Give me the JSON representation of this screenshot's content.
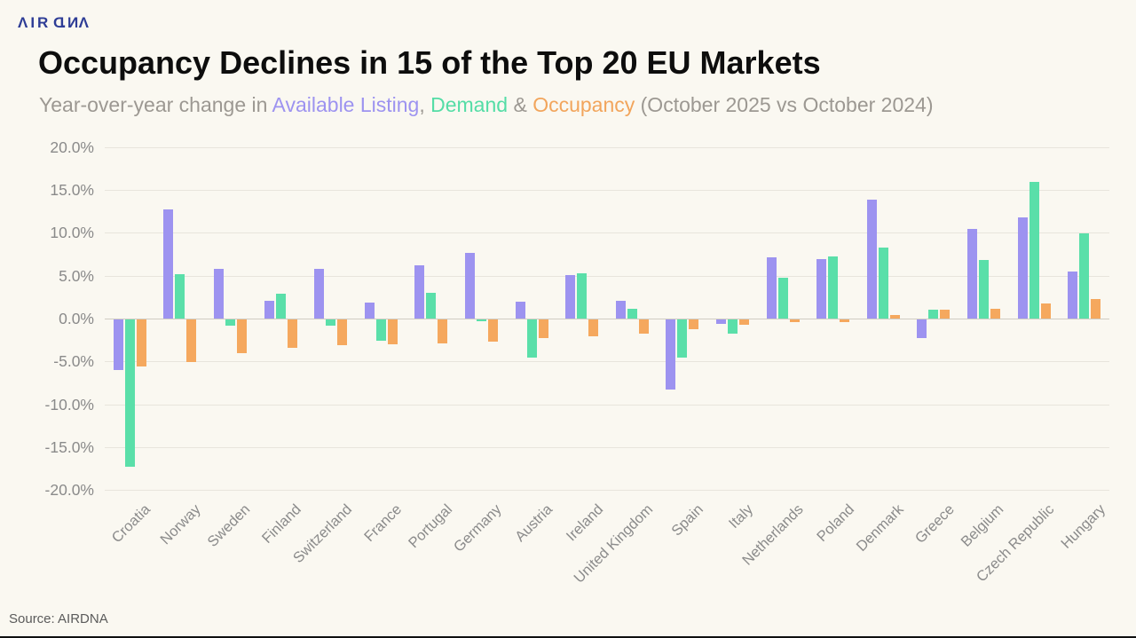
{
  "header": {
    "logo": {
      "p1": "ΛIR",
      "d": "D",
      "dot": ".",
      "n": "N",
      "p2": "Λ"
    }
  },
  "subtitle": {
    "prefix": "Year-over-year change in ",
    "listing": "Available Listing",
    "comma": ", ",
    "demand": "Demand",
    "amp": " & ",
    "occupancy": "Occupancy",
    "suffix": " (October 2025 vs October 2024)"
  },
  "footer": {
    "source": "Source: AIRDNA"
  },
  "colors": {
    "background": "#faf8f1",
    "listing": "#9d93f0",
    "demand": "#5adfa9",
    "occupancy": "#f5a85e",
    "logo_navy": "#2e3d96"
  },
  "chart_data": {
    "type": "bar",
    "title": "Occupancy Declines in 15 of the Top 20 EU Markets",
    "subtitle": "Year-over-year change in Available Listing, Demand & Occupancy (October 2025 vs October 2024)",
    "categories": [
      "Croatia",
      "Norway",
      "Sweden",
      "Finland",
      "Switzerland",
      "France",
      "Portugal",
      "Germany",
      "Austria",
      "Ireland",
      "United Kingdom",
      "Spain",
      "Italy",
      "Netherlands",
      "Poland",
      "Denmark",
      "Greece",
      "Belgium",
      "Czech Republic",
      "Hungary"
    ],
    "series": [
      {
        "name": "Available Listing",
        "color": "#9d93f0",
        "values": [
          -5.9,
          12.7,
          5.8,
          2.1,
          5.8,
          1.9,
          6.2,
          7.7,
          2.0,
          5.1,
          2.1,
          -8.2,
          -0.5,
          7.1,
          6.9,
          13.9,
          -2.2,
          10.5,
          11.8,
          5.5
        ]
      },
      {
        "name": "Demand",
        "color": "#5adfa9",
        "values": [
          -17.2,
          5.2,
          -0.7,
          2.9,
          -0.7,
          -2.5,
          3.0,
          -0.2,
          -4.5,
          5.3,
          1.1,
          -4.5,
          -1.7,
          4.8,
          7.3,
          8.3,
          1.0,
          6.8,
          16.0,
          9.9
        ]
      },
      {
        "name": "Occupancy",
        "color": "#f5a85e",
        "values": [
          -5.5,
          -5.0,
          -3.9,
          -3.3,
          -3.0,
          -2.9,
          -2.8,
          -2.6,
          -2.2,
          -2.0,
          -1.7,
          -1.1,
          -0.6,
          -0.3,
          -0.3,
          0.4,
          1.0,
          1.1,
          1.8,
          2.3
        ]
      }
    ],
    "ylim": [
      -20,
      20
    ],
    "ytick_values": [
      20,
      15,
      10,
      5,
      0,
      -5,
      -10,
      -15,
      -20
    ],
    "ytick_labels": [
      "20.0%",
      "15.0%",
      "10.0%",
      "5.0%",
      "0.0%",
      "-5.0%",
      "-10.0%",
      "-15.0%",
      "-20.0%"
    ],
    "grid": true,
    "legend_position": "in-subtitle"
  }
}
